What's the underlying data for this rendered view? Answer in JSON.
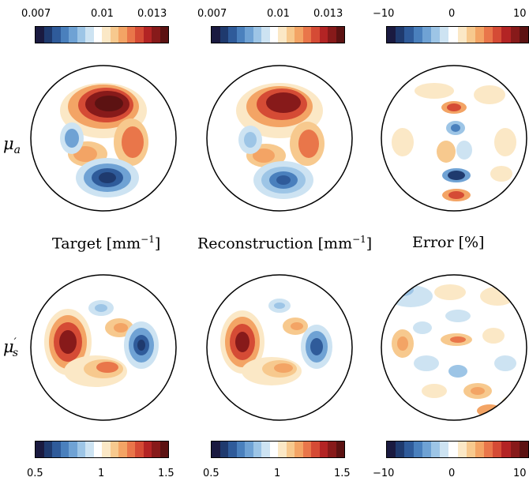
{
  "colormap": [
    "#1a1a40",
    "#1f3a6e",
    "#2f5b9a",
    "#4a80bd",
    "#6fa2d4",
    "#9dc5e6",
    "#cde3f2",
    "#ffffff",
    "#fbe8c6",
    "#f7c98e",
    "#f3a465",
    "#e9764a",
    "#d54b35",
    "#b32424",
    "#871a1a",
    "#5c1212"
  ],
  "row_labels": {
    "mu_a": {
      "base": "μ",
      "sub": "a"
    },
    "mu_s": {
      "base": "μ",
      "sub": "s",
      "prime": "′"
    }
  },
  "column_titles": {
    "target": "Target [mm",
    "target_sup": "−1",
    "target_end": "]",
    "reconstruction": "Reconstruction [mm",
    "reconstruction_sup": "−1",
    "reconstruction_end": "]",
    "error": "Error [%]"
  },
  "colorbars": {
    "top_target": [
      "0.007",
      "0.01",
      "0.013"
    ],
    "top_recon": [
      "0.007",
      "0.01",
      "0.013"
    ],
    "top_error": [
      "−10",
      "0",
      "10"
    ],
    "bottom_target": [
      "0.5",
      "1",
      "1.5"
    ],
    "bottom_recon": [
      "0.5",
      "1",
      "1.5"
    ],
    "bottom_error": [
      "−10",
      "0",
      "10"
    ]
  }
}
